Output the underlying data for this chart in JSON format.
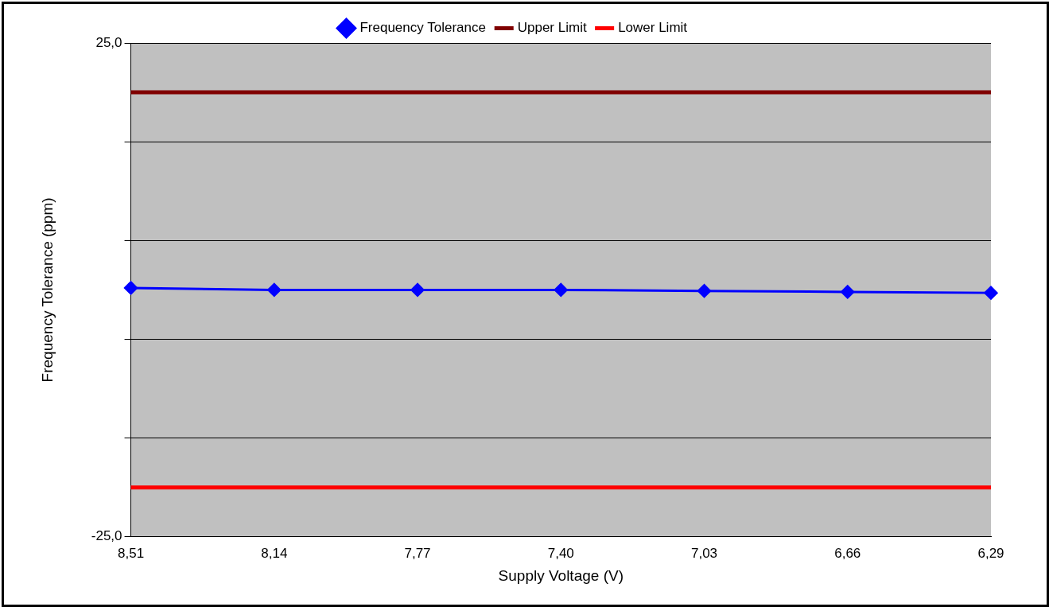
{
  "chart_data": {
    "type": "line",
    "xlabel": "Supply Voltage (V)",
    "ylabel": "Frequency Tolerance (ppm)",
    "categories": [
      "8,51",
      "8,14",
      "7,77",
      "7,40",
      "7,03",
      "6,66",
      "6,29"
    ],
    "series": [
      {
        "name": "Frequency Tolerance",
        "color": "#0000ff",
        "marker": "diamond",
        "values": [
          0.2,
          0,
          0,
          0,
          -0.1,
          -0.2,
          -0.3
        ]
      },
      {
        "name": "Upper Limit",
        "color": "#800000",
        "marker": "none",
        "values": [
          20,
          20,
          20,
          20,
          20,
          20,
          20
        ]
      },
      {
        "name": "Lower Limit",
        "color": "#ff0000",
        "marker": "none",
        "values": [
          -20,
          -20,
          -20,
          -20,
          -20,
          -20,
          -20
        ]
      }
    ],
    "ylim": [
      -25,
      25
    ],
    "yticks": [
      {
        "value": -25,
        "label": "-25,0"
      },
      {
        "value": -15,
        "label": null
      },
      {
        "value": -5,
        "label": null
      },
      {
        "value": 5,
        "label": null
      },
      {
        "value": 15,
        "label": null
      },
      {
        "value": 25,
        "label": "25,0"
      }
    ],
    "grid": "y",
    "legend": "top"
  }
}
